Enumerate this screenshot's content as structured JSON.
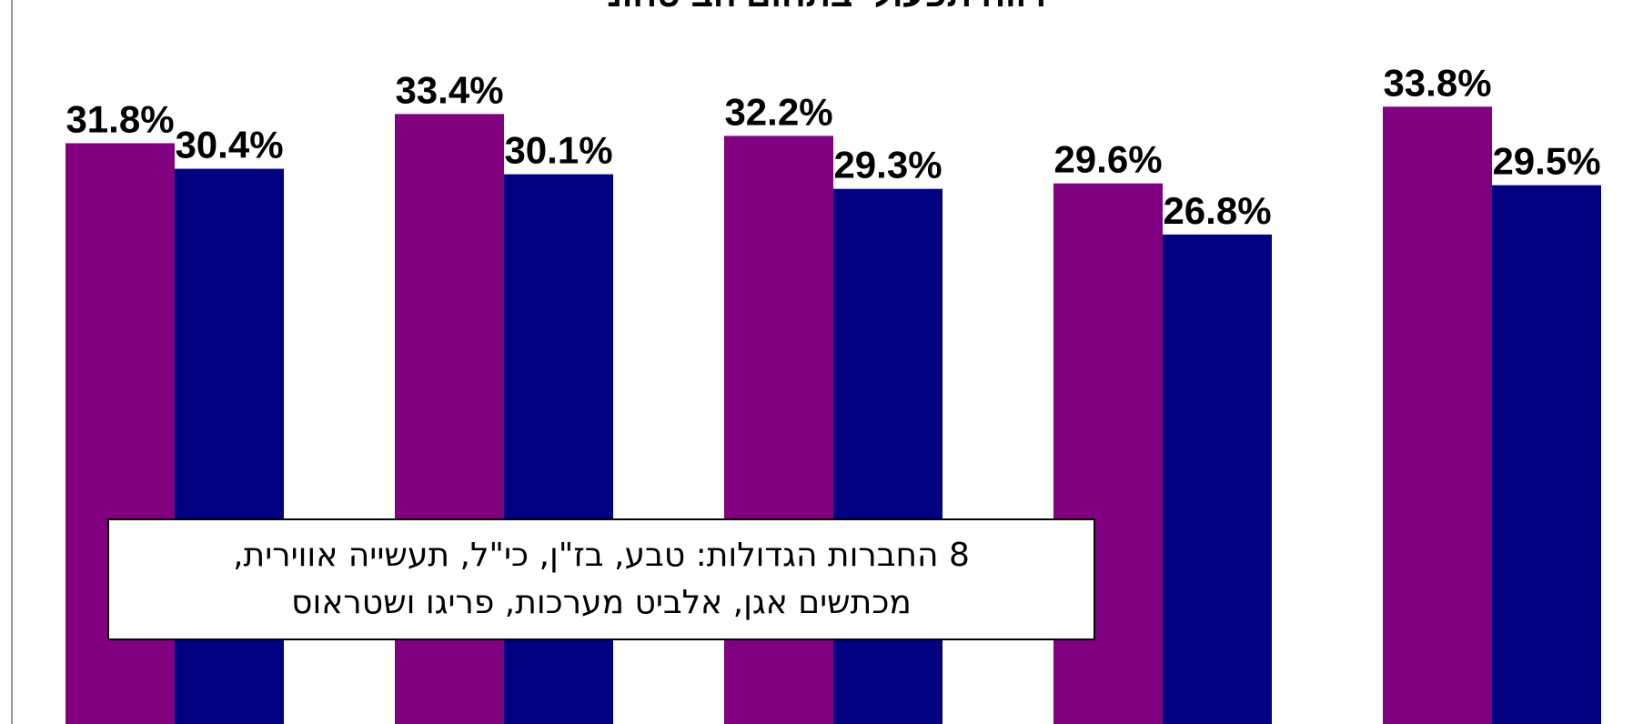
{
  "colors": {
    "series_a": "#800080",
    "series_b": "#000080",
    "axis": "#999999",
    "label": "#000000",
    "note_border": "#000000",
    "note_bg": "#ffffff"
  },
  "chart_data": {
    "type": "bar",
    "title": "רווח תפעולי בתחום הביטחוני",
    "categories": [
      "",
      "",
      "",
      "",
      ""
    ],
    "ylim": [
      0,
      40
    ],
    "grid": false,
    "series": [
      {
        "values": [
          31.8,
          33.4,
          32.2,
          29.6,
          33.8
        ],
        "labels": [
          "31.8%",
          "33.4%",
          "32.2%",
          "29.6%",
          "33.8%"
        ]
      },
      {
        "values": [
          30.4,
          30.1,
          29.3,
          26.8,
          29.5
        ],
        "labels": [
          "30.4%",
          "30.1%",
          "29.3%",
          "26.8%",
          "29.5%"
        ]
      }
    ]
  },
  "note": {
    "line1": "8 החברות הגדולות: טבע, בז\"ן, כי\"ל, תעשייה אווירית,",
    "line2": "מכתשים אגן, אלביט מערכות, פריגו ושטראוס"
  }
}
